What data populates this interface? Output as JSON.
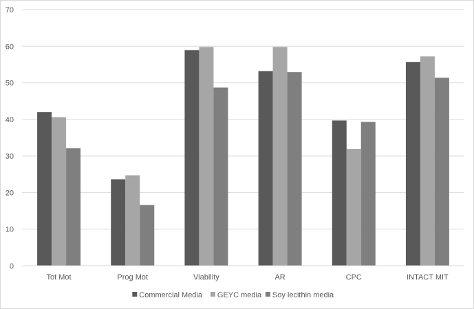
{
  "chart_data": {
    "type": "bar",
    "categories": [
      "Tot Mot",
      "Prog Mot",
      "Viability",
      "AR",
      "CPC",
      "INTACT MIT"
    ],
    "series": [
      {
        "name": "Commercial Media",
        "color": "#595959",
        "values": [
          42.0,
          23.6,
          58.9,
          53.2,
          39.7,
          55.7
        ]
      },
      {
        "name": "GEYC media",
        "color": "#a6a6a6",
        "values": [
          40.6,
          24.7,
          59.8,
          59.8,
          31.9,
          57.2
        ]
      },
      {
        "name": "Soy lecithin media",
        "color": "#7f7f7f",
        "values": [
          32.1,
          16.6,
          48.7,
          52.9,
          39.3,
          51.4
        ]
      }
    ],
    "title": "",
    "xlabel": "",
    "ylabel": "",
    "ylim": [
      0,
      70
    ],
    "yticks": [
      "0",
      "10",
      "20",
      "30",
      "40",
      "50",
      "60",
      "70"
    ],
    "grid": true,
    "legend_position": "bottom"
  }
}
